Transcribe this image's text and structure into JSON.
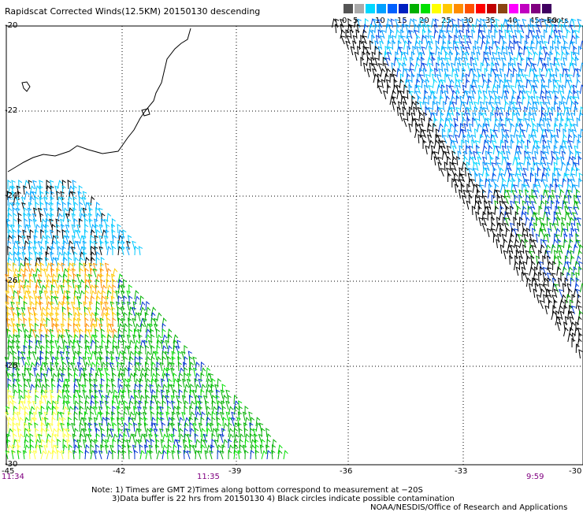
{
  "title": "Rapidscat Corrected Winds(12.5KM) 20150130 descending",
  "legend": {
    "units": "knots",
    "items": [
      {
        "label": "0",
        "color": "#555555"
      },
      {
        "label": "5",
        "color": "#aaaaaa"
      },
      {
        "label": "",
        "color": "#00d8ff"
      },
      {
        "label": "10",
        "color": "#00a0ff"
      },
      {
        "label": "",
        "color": "#0060ff"
      },
      {
        "label": "15",
        "color": "#0020c0"
      },
      {
        "label": "",
        "color": "#00b000"
      },
      {
        "label": "20",
        "color": "#00e000"
      },
      {
        "label": "",
        "color": "#ffff00"
      },
      {
        "label": "25",
        "color": "#ffc800"
      },
      {
        "label": "",
        "color": "#ff8c00"
      },
      {
        "label": "30",
        "color": "#ff5000"
      },
      {
        "label": "",
        "color": "#ff0000"
      },
      {
        "label": "35",
        "color": "#c00000"
      },
      {
        "label": "",
        "color": "#8b4513"
      },
      {
        "label": "40",
        "color": "#ff00ff"
      },
      {
        "label": "",
        "color": "#c000c0"
      },
      {
        "label": "45",
        "color": "#800080"
      },
      {
        "label": ">50",
        "color": "#400060"
      }
    ]
  },
  "lat_labels": [
    "-20",
    "-22",
    "-24",
    "-26",
    "-28",
    "-30"
  ],
  "lon_labels": [
    "-45",
    "-42",
    "-39",
    "-36",
    "-33",
    "-30"
  ],
  "time_labels": [
    "11:34",
    "11:35",
    "9:59"
  ],
  "notes": [
    "Note: 1) Times are GMT 2)Times along bottom correspond to measurement at −20S",
    "3)Data buffer is 22 hrs from 20150130 4) Black circles indicate possible contamination",
    "NOAA/NESDIS/Office of Research and Applications"
  ]
}
